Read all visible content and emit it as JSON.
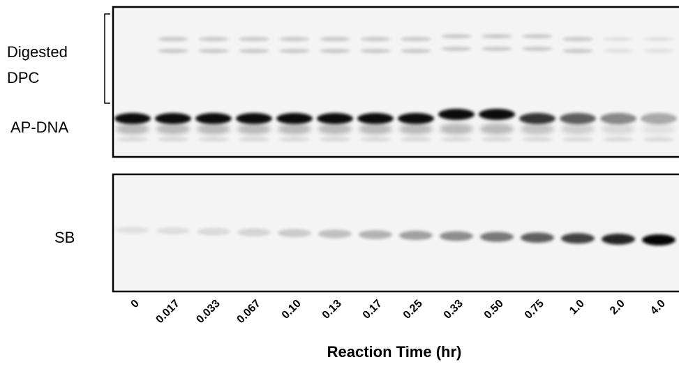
{
  "labels": {
    "digested": [
      "Digested",
      "DPC"
    ],
    "ap_dna": "AP-DNA",
    "sb": "SB"
  },
  "lanes": [
    "0",
    "0.017",
    "0.033",
    "0.067",
    "0.10",
    "0.13",
    "0.17",
    "0.25",
    "0.33",
    "0.50",
    "0.75",
    "1.0",
    "2.0",
    "4.0"
  ],
  "x_axis_title": "Reaction Time (hr)"
}
